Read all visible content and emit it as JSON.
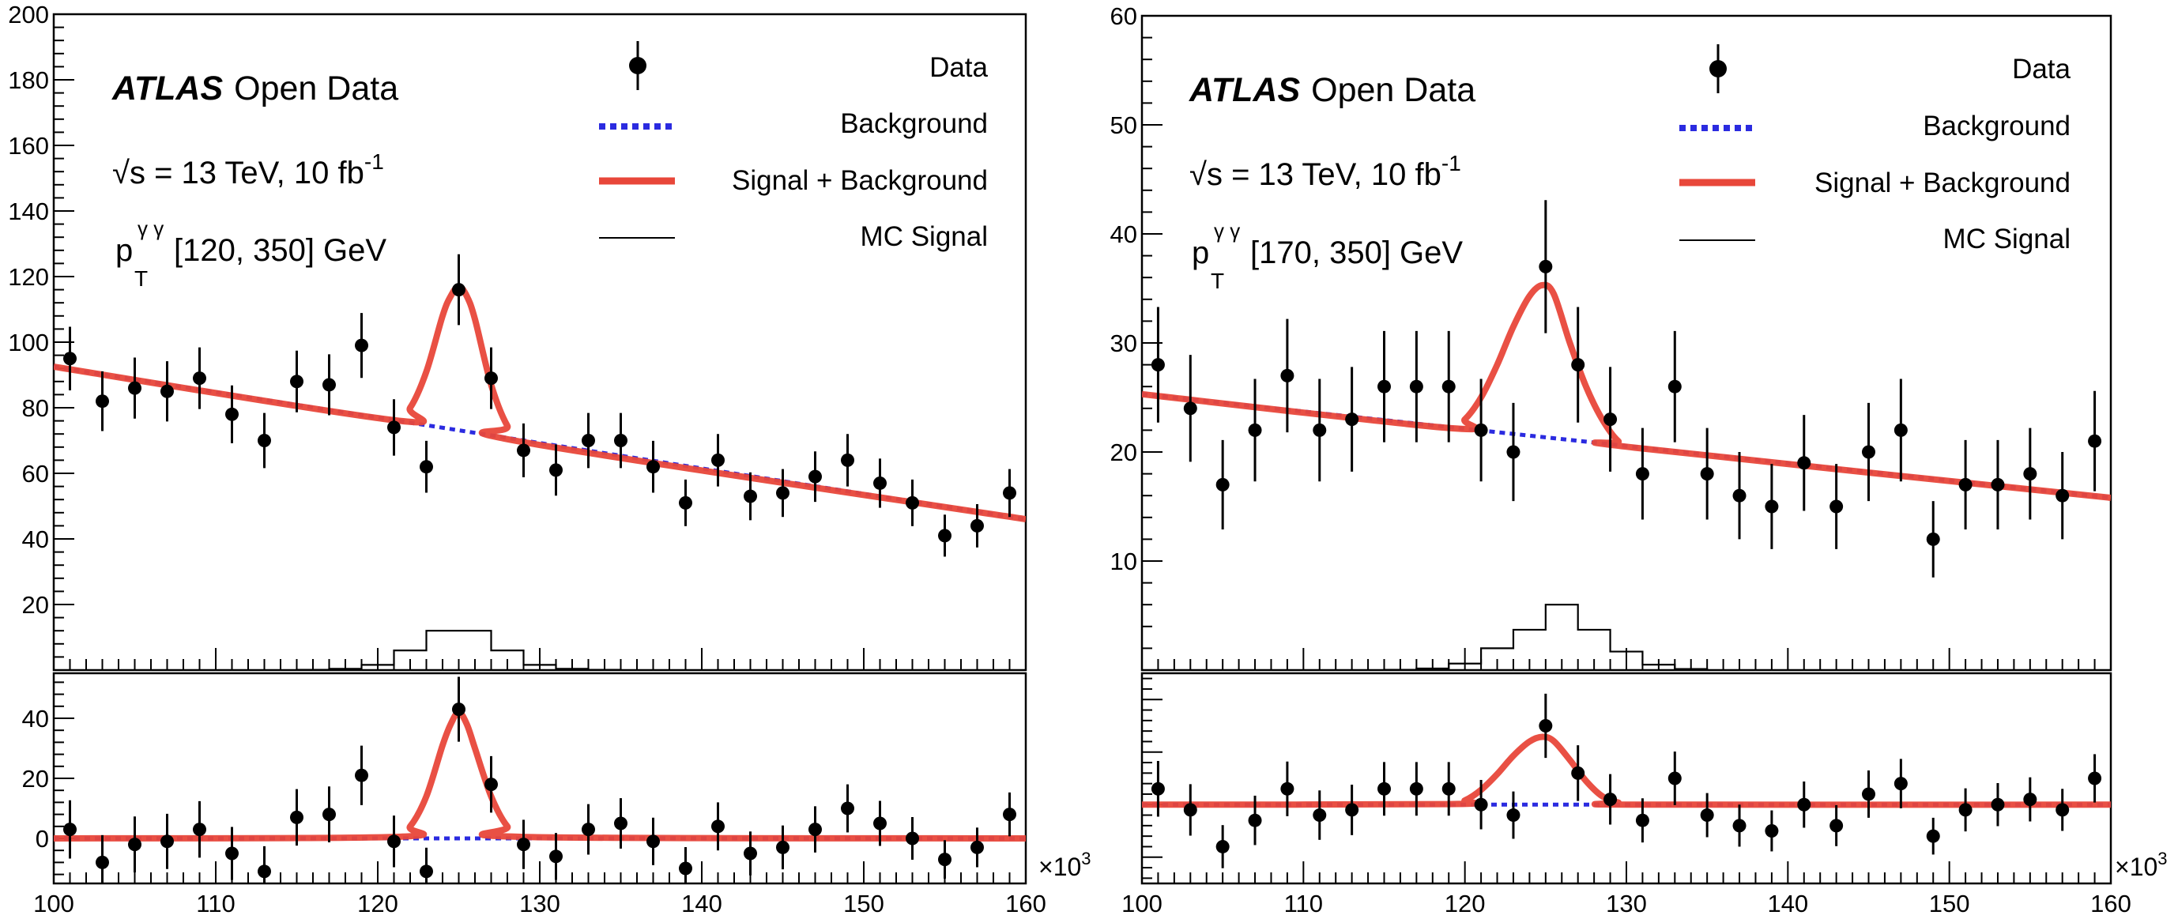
{
  "panels": [
    {
      "experiment_bold": "ATLAS",
      "experiment_rest": "Open Data",
      "energy_text": "√s = 13 TeV, 10 fb",
      "energy_sup": "-1",
      "pt_p": "p",
      "pt_sup": "γ γ",
      "pt_sub": "T",
      "pt_range": "[120, 350] GeV"
    },
    {
      "experiment_bold": "ATLAS",
      "experiment_rest": "Open Data",
      "energy_text": "√s = 13 TeV, 10 fb",
      "energy_sup": "-1",
      "pt_p": "p",
      "pt_sup": "γ γ",
      "pt_sub": "T",
      "pt_range": "[170, 350] GeV"
    }
  ],
  "legend": {
    "data": "Data",
    "background": "Background",
    "signal_background": "Signal + Background",
    "mc_signal": "MC Signal"
  },
  "x_multiplier": "×10",
  "x_multiplier_exp": "3",
  "colors": {
    "signal_background": "#e8473a",
    "background": "#2b2be0",
    "data": "#000000",
    "mc_signal": "#000000"
  },
  "chart_data": [
    {
      "type": "scatter",
      "panel": "upper",
      "title": "",
      "xlabel": "",
      "ylabel": "",
      "xlim": [
        100000,
        160000
      ],
      "ylim": [
        0,
        200
      ],
      "x_ticks": [
        100000,
        110000,
        120000,
        130000,
        140000,
        150000,
        160000
      ],
      "x_tick_labels": [
        "100",
        "110",
        "120",
        "130",
        "140",
        "150",
        "160"
      ],
      "y_ticks": [
        20,
        40,
        60,
        80,
        100,
        120,
        140,
        160,
        180,
        200
      ],
      "y_tick_labels": [
        "20",
        "40",
        "60",
        "80",
        "100",
        "120",
        "140",
        "160",
        "180",
        "200"
      ],
      "legend_position": "top-right",
      "grid": false,
      "series": [
        {
          "name": "Data",
          "kind": "points_with_errors",
          "x": [
            101000,
            103000,
            105000,
            107000,
            109000,
            111000,
            113000,
            115000,
            117000,
            119000,
            121000,
            123000,
            125000,
            127000,
            129000,
            131000,
            133000,
            135000,
            137000,
            139000,
            141000,
            143000,
            145000,
            147000,
            149000,
            151000,
            153000,
            155000,
            157000,
            159000
          ],
          "y": [
            95,
            82,
            86,
            85,
            89,
            78,
            70,
            88,
            87,
            99,
            74,
            62,
            116,
            89,
            67,
            61,
            70,
            70,
            62,
            51,
            64,
            53,
            54,
            59,
            64,
            57,
            51,
            41,
            44,
            54
          ],
          "err": [
            9.7,
            9.1,
            9.3,
            9.2,
            9.4,
            8.8,
            8.4,
            9.4,
            9.3,
            9.9,
            8.6,
            7.9,
            10.8,
            9.4,
            8.2,
            7.8,
            8.4,
            8.4,
            7.9,
            7.1,
            8.0,
            7.3,
            7.3,
            7.7,
            8.0,
            7.5,
            7.1,
            6.4,
            6.6,
            7.3
          ]
        },
        {
          "name": "Background",
          "kind": "line",
          "style": "dotted",
          "x": [
            100000,
            160000
          ],
          "y": [
            92.5,
            46
          ]
        },
        {
          "name": "Signal + Background",
          "kind": "line",
          "x": [
            100000,
            121000,
            122000,
            123000,
            124000,
            124500,
            125000,
            125500,
            126000,
            127000,
            128000,
            129000,
            160000
          ],
          "y": [
            92.5,
            76.2,
            80,
            91,
            108,
            114,
            117,
            114,
            107,
            87,
            74.5,
            69.5,
            46
          ]
        },
        {
          "name": "MC Signal",
          "kind": "histogram",
          "bin_edges": [
            115000,
            117000,
            119000,
            121000,
            123000,
            125000,
            127000,
            129000,
            131000,
            133000,
            135000
          ],
          "values": [
            0.1,
            0.4,
            1.6,
            6,
            12,
            12,
            6,
            1.6,
            0.4,
            0.1
          ]
        }
      ]
    },
    {
      "type": "scatter",
      "panel": "lower",
      "title": "",
      "xlabel": "",
      "ylabel": "",
      "xlim": [
        100000,
        160000
      ],
      "ylim": [
        -15,
        55
      ],
      "y_ticks": [
        0,
        20,
        40
      ],
      "y_tick_labels": [
        "0",
        "20",
        "40"
      ],
      "grid": false,
      "series": [
        {
          "name": "Data",
          "kind": "points_with_errors",
          "x": [
            101000,
            103000,
            105000,
            107000,
            109000,
            111000,
            113000,
            115000,
            117000,
            119000,
            121000,
            123000,
            125000,
            127000,
            129000,
            131000,
            133000,
            135000,
            137000,
            139000,
            141000,
            143000,
            145000,
            147000,
            149000,
            151000,
            153000,
            155000,
            157000,
            159000
          ],
          "y": [
            3,
            -8,
            -2,
            -1,
            3,
            -5,
            -11,
            7,
            8,
            21,
            -1,
            -11,
            43,
            18,
            -2,
            -6,
            3,
            5,
            -1,
            -10,
            4,
            -5,
            -3,
            3,
            10,
            5,
            0,
            -7,
            -3,
            8
          ],
          "err": [
            9.7,
            9.1,
            9.3,
            9.2,
            9.4,
            8.8,
            8.4,
            9.4,
            9.3,
            9.9,
            8.6,
            7.9,
            10.8,
            9.4,
            8.2,
            7.8,
            8.4,
            8.4,
            7.9,
            7.1,
            8.0,
            7.3,
            7.3,
            7.7,
            8.0,
            7.5,
            7.1,
            6.4,
            6.6,
            7.3
          ]
        },
        {
          "name": "Background",
          "kind": "line",
          "style": "dotted",
          "x": [
            100000,
            160000
          ],
          "y": [
            0,
            0
          ]
        },
        {
          "name": "Signal + Background",
          "kind": "line",
          "x": [
            100000,
            121000,
            122000,
            123000,
            124000,
            124500,
            125000,
            125500,
            126000,
            127000,
            128000,
            129000,
            160000
          ],
          "y": [
            0,
            0.5,
            4,
            14,
            31,
            38,
            42,
            38,
            30,
            14,
            4,
            0.5,
            0
          ]
        }
      ]
    },
    {
      "type": "scatter",
      "panel": "upper",
      "title": "",
      "xlabel": "",
      "ylabel": "",
      "xlim": [
        100000,
        160000
      ],
      "ylim": [
        0,
        60
      ],
      "x_ticks": [
        100000,
        110000,
        120000,
        130000,
        140000,
        150000,
        160000
      ],
      "x_tick_labels": [
        "100",
        "110",
        "120",
        "130",
        "140",
        "150",
        "160"
      ],
      "y_ticks": [
        10,
        20,
        30,
        40,
        50,
        60
      ],
      "y_tick_labels": [
        "10",
        "20",
        "30",
        "40",
        "50",
        "60"
      ],
      "legend_position": "top-right",
      "grid": false,
      "series": [
        {
          "name": "Data",
          "kind": "points_with_errors",
          "x": [
            101000,
            103000,
            105000,
            107000,
            109000,
            111000,
            113000,
            115000,
            117000,
            119000,
            121000,
            123000,
            125000,
            127000,
            129000,
            131000,
            133000,
            135000,
            137000,
            139000,
            141000,
            143000,
            145000,
            147000,
            149000,
            151000,
            153000,
            155000,
            157000,
            159000
          ],
          "y": [
            28,
            24,
            17,
            22,
            27,
            22,
            23,
            26,
            26,
            26,
            22,
            20,
            37,
            28,
            23,
            18,
            26,
            18,
            16,
            15,
            19,
            15,
            20,
            22,
            12,
            17,
            17,
            18,
            16,
            21
          ],
          "err": [
            5.3,
            4.9,
            4.1,
            4.7,
            5.2,
            4.7,
            4.8,
            5.1,
            5.1,
            5.1,
            4.7,
            4.5,
            6.1,
            5.3,
            4.8,
            4.2,
            5.1,
            4.2,
            4.0,
            3.9,
            4.4,
            3.9,
            4.5,
            4.7,
            3.5,
            4.1,
            4.1,
            4.2,
            4.0,
            4.6
          ]
        },
        {
          "name": "Background",
          "kind": "line",
          "style": "dotted",
          "x": [
            100000,
            160000
          ],
          "y": [
            25.3,
            15.8
          ]
        },
        {
          "name": "Signal + Background",
          "kind": "line",
          "x": [
            100000,
            119000,
            120000,
            121000,
            122000,
            123000,
            124000,
            124800,
            125500,
            126500,
            127500,
            128500,
            129500,
            130500,
            160000
          ],
          "y": [
            25.3,
            22.2,
            23,
            25,
            28,
            31.5,
            34.3,
            35.3,
            34.5,
            30,
            26,
            23,
            21,
            20.4,
            15.8
          ]
        },
        {
          "name": "MC Signal",
          "kind": "histogram",
          "bin_edges": [
            115000,
            117000,
            119000,
            121000,
            123000,
            125000,
            127000,
            129000,
            131000,
            133000,
            135000
          ],
          "values": [
            0.03,
            0.15,
            0.6,
            2,
            3.7,
            6,
            3.7,
            1.7,
            0.5,
            0.1
          ]
        }
      ]
    },
    {
      "type": "scatter",
      "panel": "lower",
      "title": "",
      "xlabel": "",
      "ylabel": "",
      "xlim": [
        100000,
        160000
      ],
      "ylim": [
        -15,
        25
      ],
      "grid": false,
      "series": [
        {
          "name": "Data",
          "kind": "points_with_errors",
          "x": [
            101000,
            103000,
            105000,
            107000,
            109000,
            111000,
            113000,
            115000,
            117000,
            119000,
            121000,
            123000,
            125000,
            127000,
            129000,
            131000,
            133000,
            135000,
            137000,
            139000,
            141000,
            143000,
            145000,
            147000,
            149000,
            151000,
            153000,
            155000,
            157000,
            159000
          ],
          "y": [
            3,
            -1,
            -8,
            -3,
            3,
            -2,
            -1,
            3,
            3,
            3,
            0,
            -2,
            15,
            6,
            1,
            -3,
            5,
            -2,
            -4,
            -5,
            0,
            -4,
            2,
            4,
            -6,
            -1,
            0,
            1,
            -1,
            5
          ],
          "err": [
            5.3,
            4.9,
            4.1,
            4.7,
            5.2,
            4.7,
            4.8,
            5.1,
            5.1,
            5.1,
            4.7,
            4.5,
            6.1,
            5.3,
            4.8,
            4.2,
            5.1,
            4.2,
            4.0,
            3.9,
            4.4,
            3.9,
            4.5,
            4.7,
            3.5,
            4.1,
            4.1,
            4.2,
            4.0,
            4.6
          ]
        },
        {
          "name": "Background",
          "kind": "line",
          "style": "dotted",
          "x": [
            100000,
            160000
          ],
          "y": [
            0,
            0
          ]
        },
        {
          "name": "Signal + Background",
          "kind": "line",
          "x": [
            100000,
            119000,
            120000,
            121000,
            122000,
            123000,
            124000,
            124800,
            125500,
            126500,
            127500,
            128500,
            129500,
            130500,
            160000
          ],
          "y": [
            0,
            0.1,
            0.8,
            2.8,
            5.8,
            9.3,
            12,
            12.9,
            12.1,
            8.5,
            4.5,
            1.6,
            0.4,
            0,
            0
          ]
        }
      ]
    }
  ]
}
